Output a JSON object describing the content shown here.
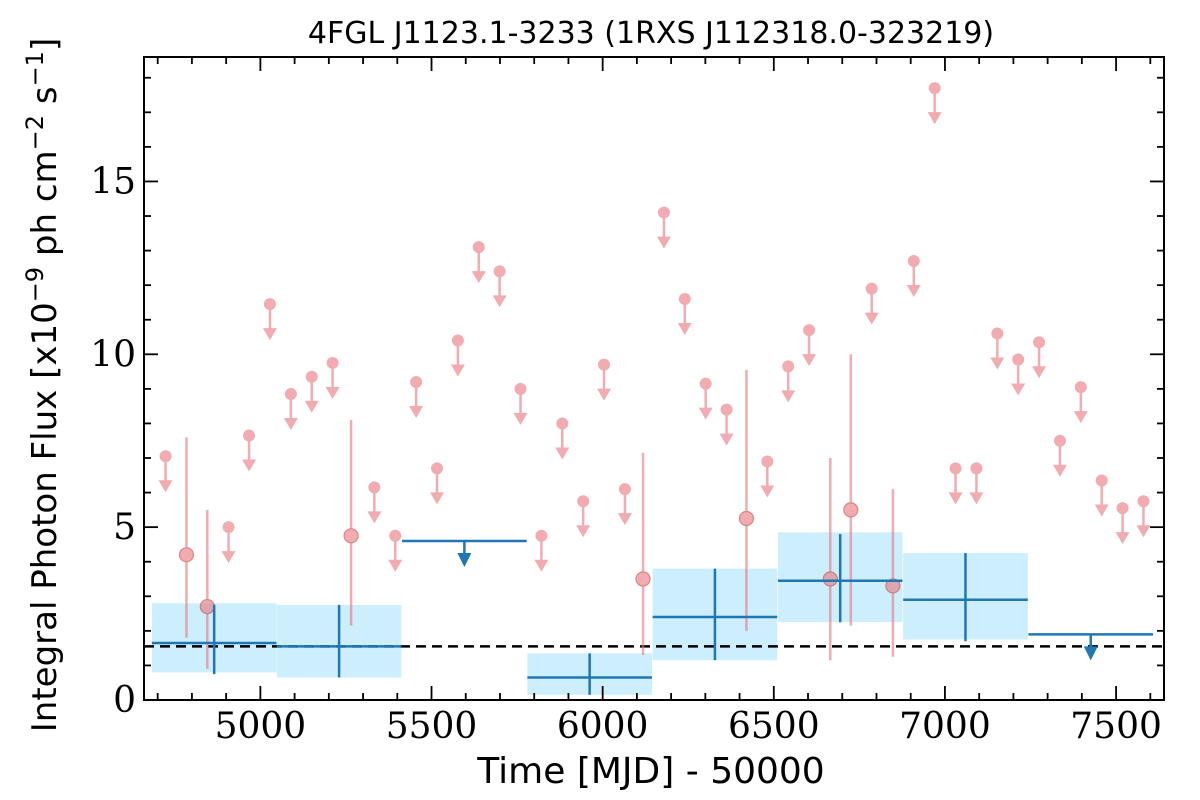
{
  "chart_data": {
    "type": "scatter",
    "title": "4FGL J1123.1-3233 (1RXS J112318.0-323219)",
    "xlabel": "Time [MJD] - 50000",
    "ylabel": "Integral Photon Flux [x10",
    "ylabel_exp": "−9",
    "ylabel_unit": " ph cm",
    "ylabel_unit_exp": "−2",
    "ylabel_tail": " s",
    "ylabel_tail_exp": "−1",
    "ylabel_end": "]",
    "xlim": [
      4660,
      7640
    ],
    "ylim": [
      0,
      18.6
    ],
    "xticks": [
      5000,
      5500,
      6000,
      6500,
      7000,
      7500
    ],
    "yticks": [
      0,
      5,
      10,
      15
    ],
    "mean_flux": 1.55,
    "long_bins": {
      "color": "#1f77b4",
      "band_color": "#cdeefc",
      "detections": [
        {
          "x": 4865,
          "xerr": 182,
          "y": 1.65,
          "ylo": 0.75,
          "yhi": 2.75,
          "band_lo": 0.8,
          "band_hi": 2.8
        },
        {
          "x": 5230,
          "xerr": 182,
          "y": 1.55,
          "ylo": 0.65,
          "yhi": 2.75,
          "band_lo": 0.65,
          "band_hi": 2.75
        },
        {
          "x": 5962,
          "xerr": 182,
          "y": 0.65,
          "ylo": 0.15,
          "yhi": 1.35,
          "band_lo": 0.15,
          "band_hi": 1.35
        },
        {
          "x": 6328,
          "xerr": 182,
          "y": 2.4,
          "ylo": 1.15,
          "yhi": 3.8,
          "band_lo": 1.15,
          "band_hi": 3.8
        },
        {
          "x": 6694,
          "xerr": 182,
          "y": 3.45,
          "ylo": 2.25,
          "yhi": 4.8,
          "band_lo": 2.25,
          "band_hi": 4.85
        },
        {
          "x": 7060,
          "xerr": 182,
          "y": 2.9,
          "ylo": 1.7,
          "yhi": 4.25,
          "band_lo": 1.75,
          "band_hi": 4.25
        }
      ],
      "upper_limits": [
        {
          "x": 5596,
          "xerr": 182,
          "y": 4.6
        },
        {
          "x": 7426,
          "xerr": 182,
          "y": 1.9
        }
      ]
    },
    "short_bins": {
      "color": "#e8757e",
      "detections": [
        {
          "x": 4784,
          "y": 4.2,
          "ylo": 1.8,
          "yhi": 7.6
        },
        {
          "x": 4845,
          "y": 2.7,
          "ylo": 0.9,
          "yhi": 5.5
        },
        {
          "x": 5265,
          "y": 4.75,
          "ylo": 2.15,
          "yhi": 8.1
        },
        {
          "x": 6118,
          "y": 3.5,
          "ylo": 1.3,
          "yhi": 7.15
        },
        {
          "x": 6420,
          "y": 5.25,
          "ylo": 2.0,
          "yhi": 9.55
        },
        {
          "x": 6665,
          "y": 3.5,
          "ylo": 1.15,
          "yhi": 7.0
        },
        {
          "x": 6725,
          "y": 5.5,
          "ylo": 2.15,
          "yhi": 10.0
        },
        {
          "x": 6848,
          "y": 3.3,
          "ylo": 1.25,
          "yhi": 6.1
        }
      ],
      "upper_limits": [
        {
          "x": 4723,
          "y": 7.05
        },
        {
          "x": 4907,
          "y": 5.0
        },
        {
          "x": 4967,
          "y": 7.65
        },
        {
          "x": 5028,
          "y": 11.45
        },
        {
          "x": 5089,
          "y": 8.85
        },
        {
          "x": 5150,
          "y": 9.35
        },
        {
          "x": 5211,
          "y": 9.75
        },
        {
          "x": 5333,
          "y": 6.15
        },
        {
          "x": 5394,
          "y": 4.75
        },
        {
          "x": 5455,
          "y": 9.2
        },
        {
          "x": 5516,
          "y": 6.7
        },
        {
          "x": 5577,
          "y": 10.4
        },
        {
          "x": 5638,
          "y": 13.1
        },
        {
          "x": 5699,
          "y": 12.4
        },
        {
          "x": 5760,
          "y": 9.0
        },
        {
          "x": 5821,
          "y": 4.75
        },
        {
          "x": 5882,
          "y": 8.0
        },
        {
          "x": 5943,
          "y": 5.75
        },
        {
          "x": 6004,
          "y": 9.7
        },
        {
          "x": 6065,
          "y": 6.1
        },
        {
          "x": 6179,
          "y": 14.1
        },
        {
          "x": 6240,
          "y": 11.6
        },
        {
          "x": 6301,
          "y": 9.15
        },
        {
          "x": 6362,
          "y": 8.4
        },
        {
          "x": 6481,
          "y": 6.9
        },
        {
          "x": 6542,
          "y": 9.65
        },
        {
          "x": 6603,
          "y": 10.7
        },
        {
          "x": 6786,
          "y": 11.9
        },
        {
          "x": 6909,
          "y": 12.7
        },
        {
          "x": 6970,
          "y": 17.7
        },
        {
          "x": 7031,
          "y": 6.7
        },
        {
          "x": 7092,
          "y": 6.7
        },
        {
          "x": 7153,
          "y": 10.6
        },
        {
          "x": 7214,
          "y": 9.85
        },
        {
          "x": 7275,
          "y": 10.35
        },
        {
          "x": 7336,
          "y": 7.5
        },
        {
          "x": 7397,
          "y": 9.05
        },
        {
          "x": 7458,
          "y": 6.35
        },
        {
          "x": 7519,
          "y": 5.55
        },
        {
          "x": 7580,
          "y": 5.75
        }
      ]
    }
  }
}
